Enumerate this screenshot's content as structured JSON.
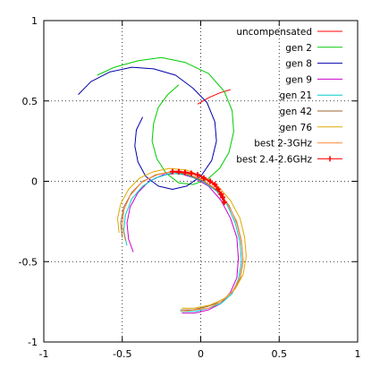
{
  "chart_data": {
    "type": "line",
    "title": "",
    "xlabel": "",
    "ylabel": "",
    "xlim": [
      -1,
      1
    ],
    "ylim": [
      -1,
      1
    ],
    "xticks": [
      -1,
      -0.5,
      0,
      0.5,
      1
    ],
    "yticks": [
      -1,
      -0.5,
      0,
      0.5,
      1
    ],
    "xtick_labels": [
      "-1",
      "-0.5",
      "0",
      "0.5",
      "1"
    ],
    "ytick_labels": [
      "-1",
      "-0.5",
      "0",
      "0.5",
      "1"
    ],
    "grid": true,
    "legend_position": "top-right",
    "series": [
      {
        "name": "uncompensated",
        "color": "#ff0000",
        "marker": "none",
        "points": [
          [
            -0.02,
            0.48
          ],
          [
            0.05,
            0.52
          ],
          [
            0.12,
            0.55
          ],
          [
            0.19,
            0.57
          ]
        ]
      },
      {
        "name": "gen 2",
        "color": "#00cc00",
        "marker": "none",
        "points": [
          [
            -0.66,
            0.66
          ],
          [
            -0.55,
            0.71
          ],
          [
            -0.4,
            0.75
          ],
          [
            -0.25,
            0.77
          ],
          [
            -0.1,
            0.74
          ],
          [
            0.05,
            0.67
          ],
          [
            0.15,
            0.56
          ],
          [
            0.2,
            0.44
          ],
          [
            0.21,
            0.31
          ],
          [
            0.18,
            0.18
          ],
          [
            0.12,
            0.08
          ],
          [
            0.04,
            0.01
          ],
          [
            -0.05,
            -0.02
          ],
          [
            -0.14,
            -0.01
          ],
          [
            -0.22,
            0.05
          ],
          [
            -0.28,
            0.14
          ],
          [
            -0.31,
            0.25
          ],
          [
            -0.3,
            0.36
          ],
          [
            -0.27,
            0.46
          ],
          [
            -0.21,
            0.54
          ],
          [
            -0.14,
            0.6
          ]
        ]
      },
      {
        "name": "gen 8",
        "color": "#0000aa",
        "marker": "none",
        "points": [
          [
            -0.78,
            0.54
          ],
          [
            -0.7,
            0.62
          ],
          [
            -0.58,
            0.68
          ],
          [
            -0.44,
            0.71
          ],
          [
            -0.3,
            0.7
          ],
          [
            -0.16,
            0.66
          ],
          [
            -0.05,
            0.58
          ],
          [
            0.04,
            0.49
          ],
          [
            0.09,
            0.37
          ],
          [
            0.1,
            0.25
          ],
          [
            0.07,
            0.13
          ],
          [
            0.0,
            0.03
          ],
          [
            -0.09,
            -0.03
          ],
          [
            -0.18,
            -0.05
          ],
          [
            -0.27,
            -0.03
          ],
          [
            -0.35,
            0.03
          ],
          [
            -0.4,
            0.12
          ],
          [
            -0.42,
            0.22
          ],
          [
            -0.41,
            0.32
          ],
          [
            -0.37,
            0.4
          ]
        ]
      },
      {
        "name": "gen 9",
        "color": "#cc00cc",
        "marker": "none",
        "points": [
          [
            -0.43,
            -0.44
          ],
          [
            -0.46,
            -0.36
          ],
          [
            -0.47,
            -0.26
          ],
          [
            -0.45,
            -0.16
          ],
          [
            -0.4,
            -0.07
          ],
          [
            -0.33,
            0.0
          ],
          [
            -0.24,
            0.04
          ],
          [
            -0.14,
            0.05
          ],
          [
            -0.04,
            0.02
          ],
          [
            0.05,
            -0.03
          ],
          [
            0.13,
            -0.12
          ],
          [
            0.19,
            -0.23
          ],
          [
            0.23,
            -0.35
          ],
          [
            0.24,
            -0.48
          ],
          [
            0.23,
            -0.6
          ],
          [
            0.19,
            -0.69
          ],
          [
            0.13,
            -0.76
          ],
          [
            0.05,
            -0.8
          ],
          [
            -0.04,
            -0.82
          ],
          [
            -0.12,
            -0.82
          ]
        ]
      },
      {
        "name": "gen 21",
        "color": "#00cccc",
        "marker": "none",
        "points": [
          [
            -0.47,
            -0.4
          ],
          [
            -0.49,
            -0.31
          ],
          [
            -0.48,
            -0.21
          ],
          [
            -0.44,
            -0.11
          ],
          [
            -0.37,
            -0.03
          ],
          [
            -0.29,
            0.02
          ],
          [
            -0.19,
            0.05
          ],
          [
            -0.09,
            0.04
          ],
          [
            0.01,
            0.0
          ],
          [
            0.1,
            -0.06
          ],
          [
            0.17,
            -0.15
          ],
          [
            0.22,
            -0.26
          ],
          [
            0.25,
            -0.38
          ],
          [
            0.26,
            -0.5
          ],
          [
            0.24,
            -0.61
          ],
          [
            0.2,
            -0.7
          ],
          [
            0.13,
            -0.76
          ],
          [
            0.05,
            -0.79
          ],
          [
            -0.04,
            -0.81
          ],
          [
            -0.13,
            -0.81
          ]
        ]
      },
      {
        "name": "gen 42",
        "color": "#996633",
        "marker": "none",
        "points": [
          [
            -0.5,
            -0.35
          ],
          [
            -0.51,
            -0.26
          ],
          [
            -0.49,
            -0.16
          ],
          [
            -0.44,
            -0.07
          ],
          [
            -0.37,
            0.0
          ],
          [
            -0.28,
            0.04
          ],
          [
            -0.18,
            0.06
          ],
          [
            -0.08,
            0.04
          ],
          [
            0.02,
            0.0
          ],
          [
            0.11,
            -0.06
          ],
          [
            0.18,
            -0.15
          ],
          [
            0.23,
            -0.26
          ],
          [
            0.26,
            -0.38
          ],
          [
            0.27,
            -0.5
          ],
          [
            0.25,
            -0.61
          ],
          [
            0.2,
            -0.69
          ],
          [
            0.13,
            -0.75
          ],
          [
            0.04,
            -0.78
          ],
          [
            -0.05,
            -0.8
          ],
          [
            -0.13,
            -0.8
          ]
        ]
      },
      {
        "name": "gen 76",
        "color": "#ddaa00",
        "marker": "none",
        "points": [
          [
            -0.52,
            -0.32
          ],
          [
            -0.53,
            -0.23
          ],
          [
            -0.51,
            -0.14
          ],
          [
            -0.46,
            -0.05
          ],
          [
            -0.39,
            0.02
          ],
          [
            -0.3,
            0.06
          ],
          [
            -0.2,
            0.08
          ],
          [
            -0.09,
            0.07
          ],
          [
            0.01,
            0.03
          ],
          [
            0.11,
            -0.03
          ],
          [
            0.19,
            -0.12
          ],
          [
            0.25,
            -0.23
          ],
          [
            0.28,
            -0.35
          ],
          [
            0.29,
            -0.47
          ],
          [
            0.27,
            -0.58
          ],
          [
            0.22,
            -0.67
          ],
          [
            0.15,
            -0.73
          ],
          [
            0.06,
            -0.77
          ],
          [
            -0.04,
            -0.79
          ],
          [
            -0.12,
            -0.79
          ]
        ]
      },
      {
        "name": "best 2-3GHz",
        "color": "#ff8c40",
        "marker": "none",
        "points": [
          [
            -0.48,
            -0.37
          ],
          [
            -0.5,
            -0.28
          ],
          [
            -0.49,
            -0.18
          ],
          [
            -0.45,
            -0.09
          ],
          [
            -0.38,
            -0.01
          ],
          [
            -0.29,
            0.04
          ],
          [
            -0.19,
            0.06
          ],
          [
            -0.09,
            0.05
          ],
          [
            0.01,
            0.01
          ],
          [
            0.1,
            -0.05
          ],
          [
            0.17,
            -0.14
          ],
          [
            0.23,
            -0.25
          ],
          [
            0.26,
            -0.37
          ],
          [
            0.27,
            -0.49
          ],
          [
            0.25,
            -0.6
          ],
          [
            0.2,
            -0.69
          ],
          [
            0.13,
            -0.75
          ],
          [
            0.05,
            -0.79
          ],
          [
            -0.04,
            -0.8
          ],
          [
            -0.12,
            -0.81
          ]
        ]
      },
      {
        "name": "best 2.4-2.6GHz",
        "color": "#ff0000",
        "marker": "plus",
        "points": [
          [
            -0.18,
            0.06
          ],
          [
            -0.14,
            0.06
          ],
          [
            -0.1,
            0.055
          ],
          [
            -0.06,
            0.05
          ],
          [
            -0.02,
            0.04
          ],
          [
            0.02,
            0.02
          ],
          [
            0.06,
            0.0
          ],
          [
            0.09,
            -0.02
          ],
          [
            0.11,
            -0.05
          ],
          [
            0.13,
            -0.08
          ],
          [
            0.14,
            -0.1
          ],
          [
            0.15,
            -0.13
          ]
        ]
      }
    ]
  }
}
